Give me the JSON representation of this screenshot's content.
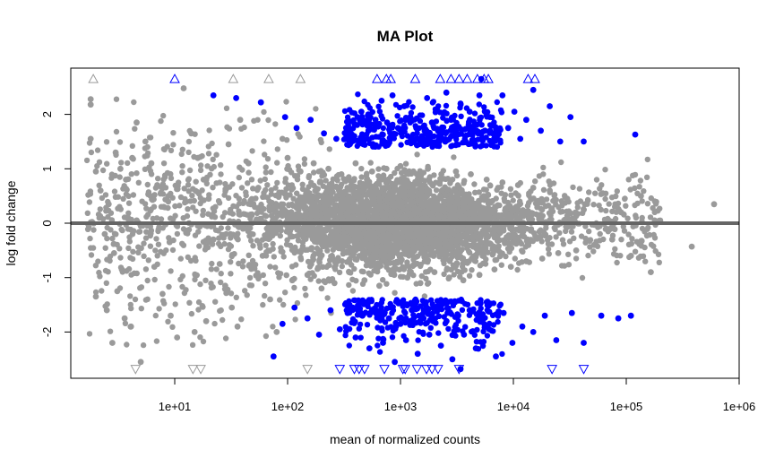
{
  "chart_data": {
    "type": "scatter",
    "title": "MA Plot",
    "xlabel": "mean of normalized counts",
    "ylabel": "log fold change",
    "x_scale": "log10",
    "xlim": [
      1.2,
      1000000
    ],
    "ylim": [
      -2.85,
      2.85
    ],
    "x_ticks": [
      10,
      100,
      1000,
      10000,
      100000,
      1000000
    ],
    "x_tick_labels": [
      "1e+01",
      "1e+02",
      "1e+03",
      "1e+04",
      "1e+05",
      "1e+06"
    ],
    "y_ticks": [
      -2,
      -1,
      0,
      1,
      2
    ],
    "y_tick_labels": [
      "-2",
      "-1",
      "0",
      "1",
      "2"
    ],
    "hline": 0,
    "hline_color": "#666666",
    "grid": false,
    "legend": "none",
    "colors": {
      "not_significant": "#9a9a9a",
      "significant": "#0000ff"
    },
    "series": [
      {
        "points": [
          [
            1.8,
            2.28
          ],
          [
            1.8,
            2.18
          ],
          [
            1.8,
            1.55
          ],
          [
            2.0,
            0.95
          ],
          [
            2.2,
            0.6
          ],
          [
            2.6,
            0.35
          ],
          [
            3.0,
            1.3
          ],
          [
            3.3,
            1.0
          ],
          [
            3.7,
            0.8
          ],
          [
            2.4,
            -0.2
          ],
          [
            2.9,
            -0.55
          ],
          [
            3.4,
            -0.85
          ],
          [
            2.0,
            -1.35
          ],
          [
            2.5,
            -1.6
          ],
          [
            3.1,
            -1.25
          ],
          [
            3.6,
            -1.75
          ],
          [
            2.8,
            -2.2
          ],
          [
            4.1,
            -1.9
          ],
          [
            5.0,
            -2.55
          ],
          [
            4.6,
            1.85
          ],
          [
            5.5,
            1.5
          ],
          [
            6.2,
            1.1
          ],
          [
            7.0,
            0.7
          ],
          [
            8.0,
            0.3
          ],
          [
            9.0,
            -0.35
          ],
          [
            6.6,
            -0.8
          ],
          [
            7.8,
            -1.3
          ],
          [
            9.2,
            -1.7
          ],
          [
            10.5,
            -2.1
          ],
          [
            4.2,
            1.2
          ],
          [
            12.0,
            2.48
          ],
          [
            14.0,
            1.65
          ],
          [
            16.0,
            1.2
          ],
          [
            18.0,
            0.8
          ],
          [
            20.0,
            0.45
          ],
          [
            22.0,
            -0.3
          ],
          [
            25.0,
            -0.75
          ],
          [
            28.0,
            -1.15
          ],
          [
            32.0,
            -1.55
          ],
          [
            36.0,
            -1.9
          ],
          [
            15.0,
            -2.0
          ],
          [
            19.0,
            -1.8
          ],
          [
            30.0,
            1.45
          ],
          [
            38.0,
            1.9
          ],
          [
            45.0,
            1.1
          ],
          [
            55.0,
            0.65
          ],
          [
            60.0,
            -0.6
          ],
          [
            70.0,
            -1.4
          ],
          [
            80.0,
            -2.0
          ],
          [
            90.0,
            1.55
          ],
          [
            100.0,
            1.2
          ],
          [
            110.0,
            -1.05
          ],
          [
            130.0,
            0.95
          ],
          [
            150.0,
            -0.95
          ],
          [
            170.0,
            1.1
          ],
          [
            200.0,
            -1.2
          ],
          [
            230.0,
            1.0
          ],
          [
            260.0,
            -1.1
          ],
          [
            300.0,
            0.9
          ],
          [
            350.0,
            -0.9
          ],
          [
            400.0,
            1.1
          ],
          [
            480.0,
            -1.05
          ],
          [
            560.0,
            0.95
          ],
          [
            650.0,
            -1.15
          ],
          [
            750.0,
            1.0
          ],
          [
            880.0,
            -0.95
          ],
          [
            1000.0,
            1.05
          ],
          [
            1150.0,
            -1.0
          ],
          [
            1300.0,
            0.95
          ],
          [
            1500.0,
            -1.1
          ],
          [
            1750.0,
            1.0
          ],
          [
            2000.0,
            -0.9
          ],
          [
            2300.0,
            0.9
          ],
          [
            2700.0,
            -1.0
          ],
          [
            3100.0,
            0.95
          ],
          [
            3600.0,
            -1.05
          ],
          [
            4200.0,
            0.9
          ],
          [
            5000.0,
            -0.95
          ],
          [
            5800.0,
            0.8
          ],
          [
            6800.0,
            -0.85
          ],
          [
            8000.0,
            0.75
          ],
          [
            9500.0,
            -0.8
          ],
          [
            11000.0,
            0.7
          ],
          [
            13000.0,
            -0.7
          ],
          [
            15000.0,
            0.65
          ],
          [
            18000.0,
            -0.65
          ],
          [
            21000.0,
            0.6
          ],
          [
            25000.0,
            -0.55
          ],
          [
            30000.0,
            0.45
          ],
          [
            36000.0,
            -0.5
          ],
          [
            43000.0,
            0.35
          ],
          [
            52000.0,
            -0.4
          ],
          [
            62000.0,
            0.55
          ],
          [
            75000.0,
            -0.3
          ],
          [
            90000.0,
            0.2
          ],
          [
            110000.0,
            -0.6
          ],
          [
            135000.0,
            0.5
          ],
          [
            165000.0,
            -0.9
          ],
          [
            200000.0,
            0.05
          ],
          [
            380000.0,
            -0.43
          ],
          [
            600000.0,
            0.35
          ]
        ],
        "shape": "circle",
        "color": "#9a9a9a"
      },
      {
        "points": [
          [
            22.0,
            2.35
          ],
          [
            35.0,
            2.3
          ],
          [
            58.0,
            2.22
          ],
          [
            95.0,
            1.95
          ],
          [
            120.0,
            1.75
          ],
          [
            160.0,
            1.9
          ],
          [
            210.0,
            1.65
          ],
          [
            270.0,
            1.55
          ],
          [
            330.0,
            1.75
          ],
          [
            390.0,
            1.6
          ],
          [
            450.0,
            2.05
          ],
          [
            520.0,
            1.7
          ],
          [
            600.0,
            1.9
          ],
          [
            680.0,
            2.25
          ],
          [
            760.0,
            1.85
          ],
          [
            850.0,
            2.35
          ],
          [
            950.0,
            1.75
          ],
          [
            1080.0,
            2.15
          ],
          [
            1220.0,
            1.95
          ],
          [
            1380.0,
            1.75
          ],
          [
            1550.0,
            1.6
          ],
          [
            1720.0,
            2.3
          ],
          [
            1900.0,
            1.85
          ],
          [
            2100.0,
            2.1
          ],
          [
            2300.0,
            1.65
          ],
          [
            2550.0,
            2.4
          ],
          [
            2800.0,
            1.9
          ],
          [
            3100.0,
            1.75
          ],
          [
            3400.0,
            2.2
          ],
          [
            3750.0,
            1.6
          ],
          [
            4100.0,
            2.05
          ],
          [
            4500.0,
            1.8
          ],
          [
            5000.0,
            2.35
          ],
          [
            5600.0,
            1.7
          ],
          [
            6200.0,
            1.95
          ],
          [
            7000.0,
            1.6
          ],
          [
            8000.0,
            2.35
          ],
          [
            9000.0,
            1.75
          ],
          [
            10200.0,
            2.05
          ],
          [
            11500.0,
            1.55
          ],
          [
            13000.0,
            1.9
          ],
          [
            15000.0,
            2.45
          ],
          [
            17500.0,
            1.7
          ],
          [
            21000.0,
            2.15
          ],
          [
            26000.0,
            1.5
          ],
          [
            32000.0,
            1.95
          ],
          [
            42000.0,
            1.5
          ],
          [
            120000.0,
            1.63
          ],
          [
            5200.0,
            2.65
          ],
          [
            75.0,
            -2.45
          ],
          [
            90.0,
            -1.85
          ],
          [
            115.0,
            -1.55
          ],
          [
            150.0,
            -1.75
          ],
          [
            190.0,
            -2.05
          ],
          [
            240.0,
            -1.6
          ],
          [
            290.0,
            -1.95
          ],
          [
            340.0,
            -1.65
          ],
          [
            400.0,
            -2.1
          ],
          [
            460.0,
            -1.7
          ],
          [
            530.0,
            -2.3
          ],
          [
            610.0,
            -1.6
          ],
          [
            700.0,
            -2.2
          ],
          [
            790.0,
            -1.75
          ],
          [
            890.0,
            -2.55
          ],
          [
            1000.0,
            -1.85
          ],
          [
            1120.0,
            -2.15
          ],
          [
            1260.0,
            -1.6
          ],
          [
            1420.0,
            -2.4
          ],
          [
            1600.0,
            -1.75
          ],
          [
            1800.0,
            -2.05
          ],
          [
            2020.0,
            -1.55
          ],
          [
            2280.0,
            -2.25
          ],
          [
            2560.0,
            -1.8
          ],
          [
            2880.0,
            -2.5
          ],
          [
            3240.0,
            -1.7
          ],
          [
            3650.0,
            -2.05
          ],
          [
            4100.0,
            -1.6
          ],
          [
            4650.0,
            -2.3
          ],
          [
            5300.0,
            -1.75
          ],
          [
            6100.0,
            -1.95
          ],
          [
            7000.0,
            -2.45
          ],
          [
            8200.0,
            -1.65
          ],
          [
            9800.0,
            -2.2
          ],
          [
            12000.0,
            -1.9
          ],
          [
            15000.0,
            -2.0
          ],
          [
            19000.0,
            -1.7
          ],
          [
            24000.0,
            -2.15
          ],
          [
            33000.0,
            -1.65
          ],
          [
            42000.0,
            -2.2
          ],
          [
            60000.0,
            -1.7
          ],
          [
            85000.0,
            -1.75
          ],
          [
            110000.0,
            -1.7
          ],
          [
            3400.0,
            -2.68
          ]
        ],
        "shape": "circle",
        "color": "#0000ff"
      },
      {
        "points": [
          [
            1.9,
            2.65
          ],
          [
            33.0,
            2.65
          ],
          [
            68.0,
            2.65
          ],
          [
            130.0,
            2.65
          ]
        ],
        "shape": "triangle-up",
        "color": "#9a9a9a"
      },
      {
        "points": [
          [
            4.5,
            -2.68
          ],
          [
            14.5,
            -2.68
          ],
          [
            17.0,
            -2.68
          ],
          [
            150.0,
            -2.68
          ]
        ],
        "shape": "triangle-down",
        "color": "#9a9a9a"
      },
      {
        "points": [
          [
            10.0,
            2.65
          ],
          [
            620.0,
            2.65
          ],
          [
            750.0,
            2.65
          ],
          [
            820.0,
            2.65
          ],
          [
            1350.0,
            2.65
          ],
          [
            2250.0,
            2.65
          ],
          [
            2800.0,
            2.65
          ],
          [
            3300.0,
            2.65
          ],
          [
            3900.0,
            2.65
          ],
          [
            4800.0,
            2.65
          ],
          [
            5500.0,
            2.65
          ],
          [
            6000.0,
            2.65
          ],
          [
            13500.0,
            2.65
          ],
          [
            15500.0,
            2.65
          ]
        ],
        "shape": "triangle-up",
        "color": "#0000ff"
      },
      {
        "points": [
          [
            290.0,
            -2.68
          ],
          [
            390.0,
            -2.68
          ],
          [
            430.0,
            -2.68
          ],
          [
            480.0,
            -2.68
          ],
          [
            720.0,
            -2.68
          ],
          [
            1050.0,
            -2.68
          ],
          [
            1100.0,
            -2.68
          ],
          [
            1400.0,
            -2.68
          ],
          [
            1700.0,
            -2.68
          ],
          [
            1900.0,
            -2.68
          ],
          [
            2150.0,
            -2.68
          ],
          [
            3300.0,
            -2.68
          ],
          [
            22000.0,
            -2.68
          ],
          [
            42000.0,
            -2.68
          ]
        ],
        "shape": "triangle-down",
        "color": "#0000ff"
      }
    ]
  }
}
